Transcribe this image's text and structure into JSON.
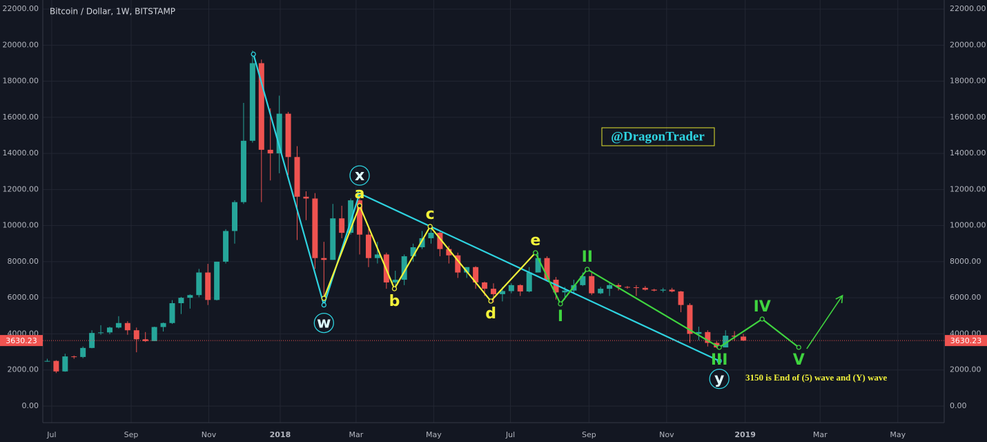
{
  "chart_data": {
    "type": "candlestick",
    "title": "Bitcoin / Dollar, 1W, BITSTAMP",
    "open": [
      2500,
      2500,
      1920,
      2750,
      2720,
      3220,
      4050,
      4080,
      4350,
      4600,
      4200,
      3700,
      3600,
      4380,
      4600,
      5700,
      6000,
      6150,
      7400,
      5880,
      8000,
      9700,
      11300,
      14700,
      19000,
      14200,
      14000,
      16200,
      13800,
      11600,
      11500,
      8200,
      8100,
      10400,
      9600,
      11400,
      9500,
      8200,
      8400,
      6850,
      7000,
      8300,
      8800,
      9300,
      9600,
      8700,
      8350,
      7400,
      7700,
      6850,
      6500,
      6200,
      6370,
      6700,
      6350,
      7400,
      8200,
      7000,
      6300,
      6400,
      6700,
      7200,
      6250,
      6500,
      6700,
      6600,
      6580,
      6550,
      6450,
      6400,
      6450,
      6350,
      5600,
      4000,
      4100,
      3500,
      3250,
      3900,
      3850
    ],
    "high": [
      2620,
      2540,
      2900,
      2800,
      3300,
      4200,
      4480,
      4400,
      4980,
      4700,
      4350,
      4100,
      4400,
      4630,
      5870,
      6050,
      6190,
      7600,
      7880,
      8000,
      9800,
      11400,
      16800,
      19700,
      19200,
      16500,
      17200,
      16300,
      14400,
      11900,
      11800,
      9100,
      11200,
      11100,
      11500,
      11700,
      9900,
      9100,
      8500,
      7500,
      8400,
      9000,
      9700,
      9960,
      9700,
      8880,
      8500,
      7700,
      7750,
      6900,
      6800,
      6600,
      6800,
      6750,
      7700,
      8500,
      8300,
      7150,
      6600,
      7000,
      7400,
      7400,
      6600,
      6800,
      6800,
      6650,
      6700,
      6650,
      6500,
      6550,
      6550,
      6380,
      5700,
      4400,
      4200,
      3600,
      4200,
      4150,
      4000
    ],
    "low": [
      2460,
      1830,
      1900,
      2620,
      2650,
      3200,
      3950,
      3980,
      4300,
      3950,
      2980,
      3550,
      3600,
      4130,
      4550,
      5100,
      5400,
      6030,
      5600,
      5850,
      7900,
      9000,
      11200,
      14600,
      11300,
      12500,
      12900,
      12800,
      9200,
      10300,
      7600,
      5880,
      8100,
      9300,
      9500,
      8400,
      7700,
      7900,
      6500,
      6430,
      6700,
      8000,
      8700,
      9000,
      8300,
      7900,
      7100,
      7100,
      6500,
      6100,
      5750,
      5800,
      6250,
      6100,
      6300,
      7400,
      6900,
      5900,
      5900,
      6200,
      6650,
      6150,
      6200,
      6100,
      6400,
      6500,
      6100,
      6400,
      6350,
      6300,
      6300,
      5200,
      3500,
      3650,
      3300,
      3200,
      3250,
      3600,
      3600
    ],
    "close": [
      2500,
      1920,
      2750,
      2720,
      3220,
      4050,
      4080,
      4350,
      4600,
      4200,
      3700,
      3600,
      4380,
      4600,
      5700,
      6000,
      6150,
      7400,
      5880,
      8000,
      9700,
      11300,
      14700,
      19000,
      14200,
      14000,
      16200,
      13800,
      11600,
      11500,
      8200,
      8100,
      10400,
      9600,
      11400,
      9500,
      8200,
      8400,
      6850,
      7000,
      8300,
      8800,
      9300,
      9600,
      8700,
      8350,
      7400,
      7700,
      6850,
      6500,
      6200,
      6370,
      6700,
      6350,
      7400,
      8200,
      7000,
      6300,
      6400,
      6700,
      7200,
      6250,
      6500,
      6700,
      6600,
      6580,
      6550,
      6450,
      6400,
      6450,
      6350,
      5600,
      4000,
      4100,
      3500,
      3250,
      3900,
      3850,
      3630
    ],
    "up_color": "#26a69a",
    "down_color": "#ef5350",
    "xlim": [
      -0.5,
      100.5
    ],
    "xticks": [
      {
        "value": 0.5,
        "label": "Jul"
      },
      {
        "value": 9.4,
        "label": "Sep"
      },
      {
        "value": 18.1,
        "label": "Nov"
      },
      {
        "value": 26.1,
        "label": "2018"
      },
      {
        "value": 34.6,
        "label": "Mar"
      },
      {
        "value": 43.3,
        "label": "May"
      },
      {
        "value": 51.9,
        "label": "Jul"
      },
      {
        "value": 60.7,
        "label": "Sep"
      },
      {
        "value": 69.4,
        "label": "Nov"
      },
      {
        "value": 78.2,
        "label": "2019"
      },
      {
        "value": 86.6,
        "label": "Mar"
      },
      {
        "value": 95.3,
        "label": "May"
      }
    ],
    "ylim": [
      -920,
      22500
    ],
    "yticks": [
      {
        "value": 0,
        "label": "0.00"
      },
      {
        "value": 2000,
        "label": "2000.00"
      },
      {
        "value": 4000,
        "label": "4000.00"
      },
      {
        "value": 6000,
        "label": "6000.00"
      },
      {
        "value": 8000,
        "label": "8000.00"
      },
      {
        "value": 10000,
        "label": "10000.00"
      },
      {
        "value": 12000,
        "label": "12000.00"
      },
      {
        "value": 14000,
        "label": "14000.00"
      },
      {
        "value": 16000,
        "label": "16000.00"
      },
      {
        "value": 18000,
        "label": "18000.00"
      },
      {
        "value": 20000,
        "label": "20000.00"
      },
      {
        "value": 22000,
        "label": "22000.00"
      }
    ],
    "grid": true,
    "last_price": 3630.23,
    "last_price_color": "#ef5350",
    "drawings": [
      {
        "color": "#2ed3e0",
        "circled": true,
        "points": [
          {
            "x": 23.1,
            "y": 19500
          },
          {
            "x": 31.0,
            "y": 5600,
            "label": "w"
          },
          {
            "x": 35.0,
            "y": 11780,
            "label": "x"
          },
          {
            "x": 75.3,
            "y": 2500,
            "label": "y"
          }
        ]
      },
      {
        "color": "#f2f23a",
        "circled": false,
        "points": [
          {
            "x": 31.0,
            "y": 5970
          },
          {
            "x": 35.0,
            "y": 11100,
            "label": "a"
          },
          {
            "x": 38.9,
            "y": 6500,
            "label": "b"
          },
          {
            "x": 42.9,
            "y": 9950,
            "label": "c"
          },
          {
            "x": 49.7,
            "y": 5815,
            "label": "d"
          },
          {
            "x": 54.7,
            "y": 8494,
            "label": "e"
          }
        ]
      },
      {
        "color": "#3fd43f",
        "circled": false,
        "points": [
          {
            "x": 54.7,
            "y": 8494
          },
          {
            "x": 57.5,
            "y": 5663,
            "label": "I"
          },
          {
            "x": 60.5,
            "y": 7576,
            "label": "II"
          },
          {
            "x": 75.3,
            "y": 3252,
            "label": "III"
          },
          {
            "x": 80.1,
            "y": 4821,
            "label": "IV"
          },
          {
            "x": 84.2,
            "y": 3252,
            "label": "V"
          }
        ]
      }
    ],
    "arrow": {
      "color": "#3fd43f",
      "points": [
        {
          "x": 85.1,
          "y": 3176
        },
        {
          "x": 89.1,
          "y": 6122
        }
      ]
    },
    "watermark": "@DragonTrader",
    "note": "3150 is End of (5) wave and (Y) wave"
  }
}
